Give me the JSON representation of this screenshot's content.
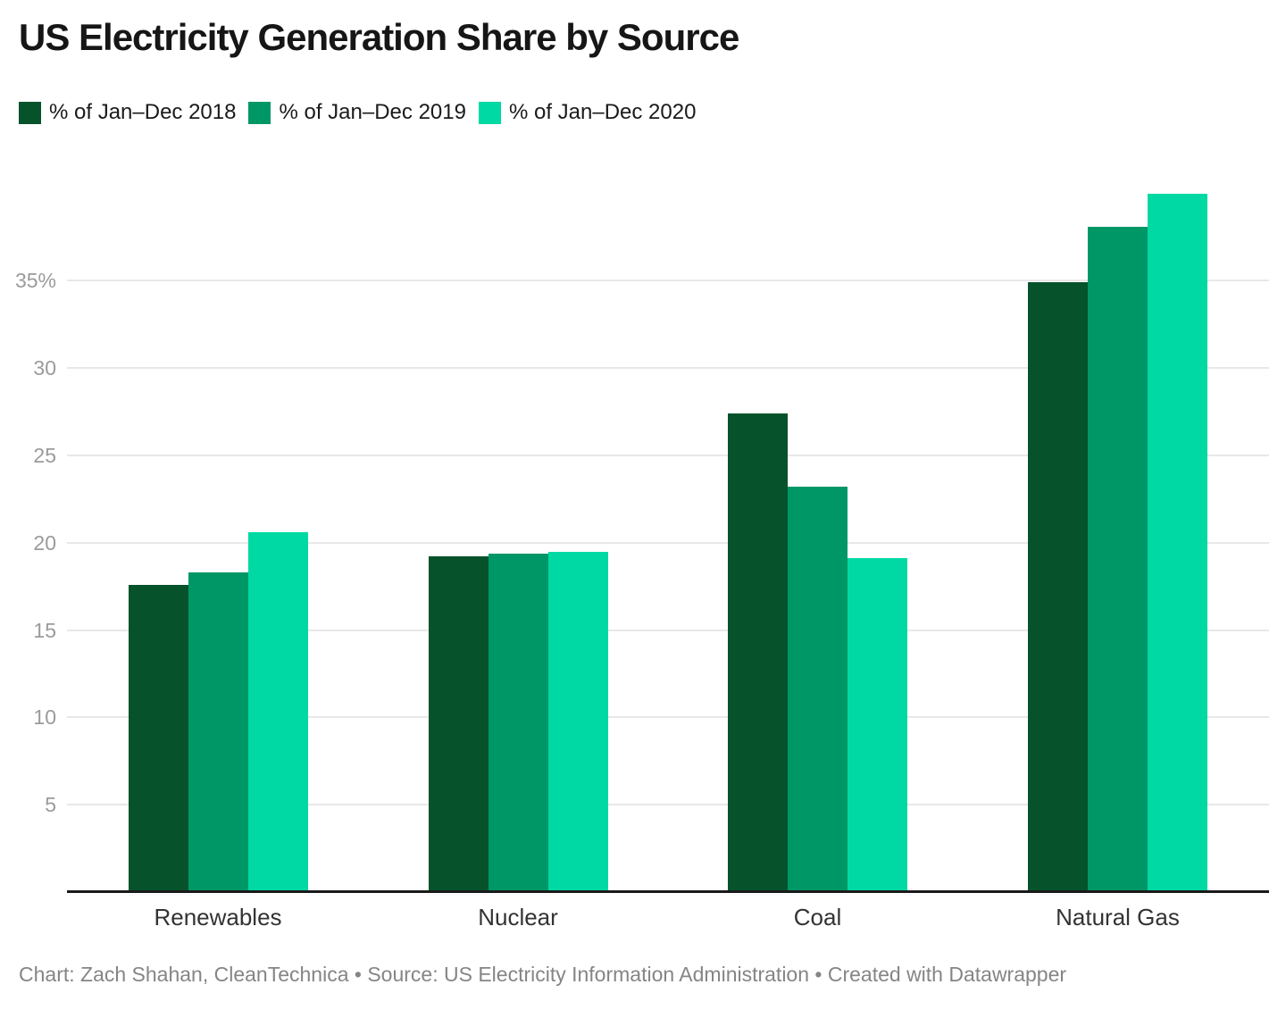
{
  "header": {
    "title": "US Electricity Generation Share by Source"
  },
  "legend": {
    "items": [
      {
        "label": "% of Jan–Dec 2018",
        "color": "#05522b"
      },
      {
        "label": "% of Jan–Dec 2019",
        "color": "#009767"
      },
      {
        "label": "% of Jan–Dec 2020",
        "color": "#00d9a3"
      }
    ]
  },
  "chart_data": {
    "type": "bar",
    "title": "US Electricity Generation Share by Source",
    "categories": [
      "Renewables",
      "Nuclear",
      "Coal",
      "Natural Gas"
    ],
    "series": [
      {
        "name": "% of Jan–Dec 2018",
        "color": "#05522b",
        "values": [
          17.6,
          19.2,
          27.4,
          34.9
        ]
      },
      {
        "name": "% of Jan–Dec 2019",
        "color": "#009767",
        "values": [
          18.3,
          19.4,
          23.2,
          38.1
        ]
      },
      {
        "name": "% of Jan–Dec 2020",
        "color": "#00d9a3",
        "values": [
          20.6,
          19.5,
          19.1,
          40.0
        ]
      }
    ],
    "xlabel": "",
    "ylabel": "",
    "yticks": [
      5,
      10,
      15,
      20,
      25,
      30,
      35
    ],
    "ytick_labels": [
      "5",
      "10",
      "15",
      "20",
      "25",
      "30",
      "35%"
    ],
    "ylim": [
      0,
      41
    ],
    "grid": "horizontal",
    "legend_position": "top"
  },
  "footer": {
    "text": "Chart: Zach Shahan, CleanTechnica • Source: US Electricity Information Administration • Created with Datawrapper"
  },
  "colors": {
    "grid": "#e8e8e8",
    "axis": "#1a1a1a",
    "tick_label": "#9b9b9b",
    "category_label": "#333333",
    "footer_text": "#858585",
    "title": "#161616"
  }
}
